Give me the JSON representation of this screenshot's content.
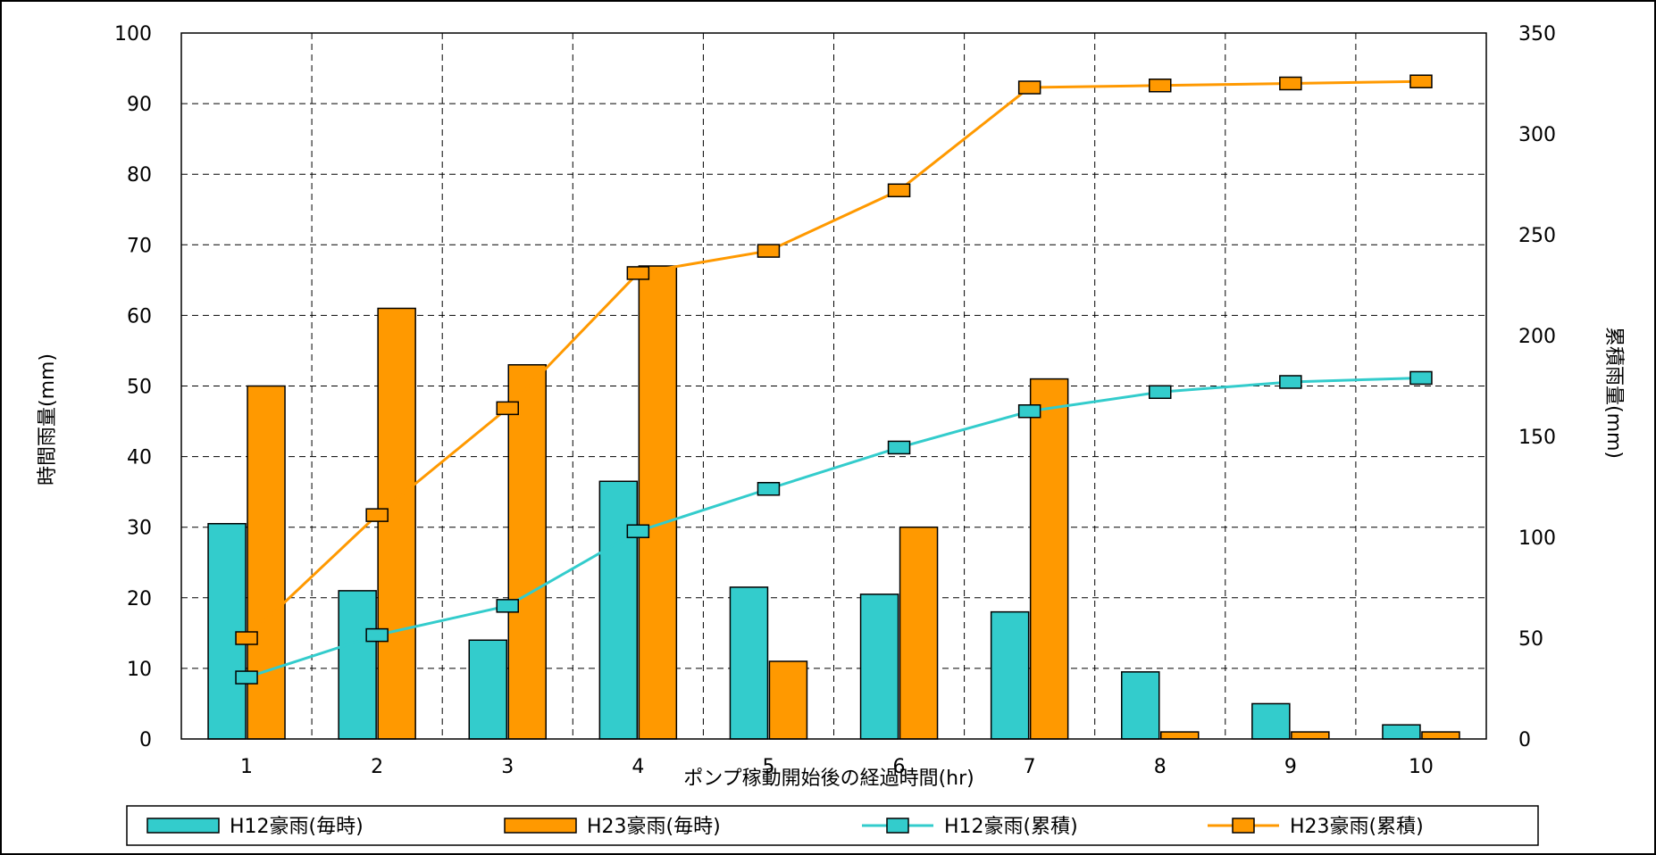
{
  "chart_data": {
    "type": "bar",
    "categories": [
      "1",
      "2",
      "3",
      "4",
      "5",
      "6",
      "7",
      "8",
      "9",
      "10"
    ],
    "xlabel": "ポンプ稼動開始後の経過時間(hr)",
    "ylabel": "時間雨量(mm)",
    "y2label": "累積雨量(mm)",
    "ylim": [
      0,
      100
    ],
    "y2lim": [
      0,
      350
    ],
    "yticks": [
      "0",
      "10",
      "20",
      "30",
      "40",
      "50",
      "60",
      "70",
      "80",
      "90",
      "100"
    ],
    "y2ticks": [
      "0",
      "50",
      "100",
      "150",
      "200",
      "250",
      "300",
      "350"
    ],
    "grid": true,
    "legend_position": "bottom",
    "series": [
      {
        "name": "H12豪雨(毎時)",
        "kind": "bar",
        "axis": "left",
        "color": "#33CCCC",
        "values": [
          30.5,
          21,
          14,
          36.5,
          21.5,
          20.5,
          18,
          9.5,
          5,
          2
        ]
      },
      {
        "name": "H23豪雨(毎時)",
        "kind": "bar",
        "axis": "left",
        "color": "#FF9900",
        "values": [
          50,
          61,
          53,
          67,
          11,
          30,
          51,
          1,
          1,
          1
        ]
      },
      {
        "name": "H12豪雨(累積)",
        "kind": "line",
        "axis": "right",
        "color": "#33CCCC",
        "values": [
          30.5,
          51.5,
          66,
          103,
          124,
          144.5,
          162.5,
          172,
          177,
          179
        ]
      },
      {
        "name": "H23豪雨(累積)",
        "kind": "line",
        "axis": "right",
        "color": "#FF9900",
        "values": [
          50,
          111,
          164,
          231,
          242,
          272,
          323,
          324,
          325,
          326
        ]
      }
    ]
  }
}
